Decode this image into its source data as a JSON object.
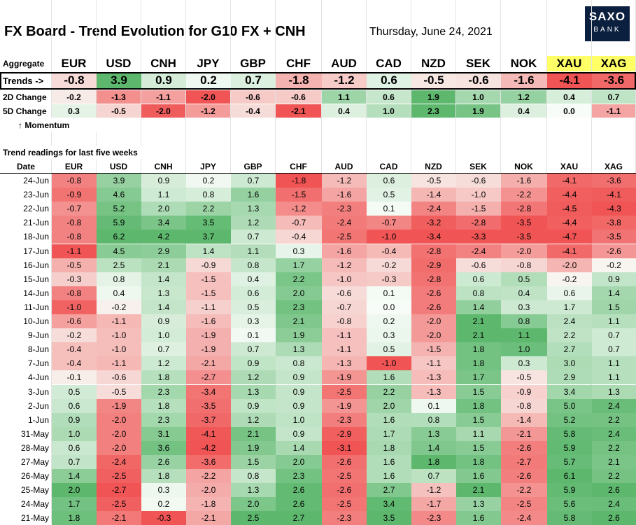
{
  "header": {
    "title": "FX Board - Trend Evolution for G10 FX + CNH",
    "date": "Thursday, June 24, 2021",
    "logo_line1": "SAXO",
    "logo_line2": "BANK"
  },
  "labels": {
    "aggregate": "Aggregate",
    "trends": "Trends ->",
    "change_2d": "2D Change",
    "change_5d": "5D Change",
    "momentum": "↑ Momentum",
    "section": "Trend readings for last five weeks",
    "date_col": "Date"
  },
  "colors": {
    "positive": "#5db86e",
    "negative": "#f05454",
    "neutral": "#f8fcf8",
    "metals_header": "#ffff66",
    "logo_bg": "#0b1f3f"
  },
  "chart_data": {
    "type": "heatmap",
    "currencies": [
      "EUR",
      "USD",
      "CNH",
      "JPY",
      "GBP",
      "CHF",
      "AUD",
      "CAD",
      "NZD",
      "SEK",
      "NOK",
      "XAU",
      "XAG"
    ],
    "aggregate": {
      "trends": [
        "-0.8",
        "3.9",
        "0.9",
        "0.2",
        "0.7",
        "-1.8",
        "-1.2",
        "0.6",
        "-0.5",
        "-0.6",
        "-1.6",
        "-4.1",
        "-3.6"
      ],
      "change_2d": [
        "-0.2",
        "-1.3",
        "-1.1",
        "-2.0",
        "-0.6",
        "-0.6",
        "1.1",
        "0.6",
        "1.9",
        "1.0",
        "1.2",
        "0.4",
        "0.7"
      ],
      "change_5d": [
        "0.3",
        "-0.5",
        "-2.0",
        "-1.2",
        "-0.4",
        "-2.1",
        "0.4",
        "1.0",
        "2.3",
        "1.9",
        "0.4",
        "0.0",
        "-1.1"
      ]
    },
    "history": [
      {
        "date": "24-Jun",
        "values": [
          "-0.8",
          "3.9",
          "0.9",
          "0.2",
          "0.7",
          "-1.8",
          "-1.2",
          "0.6",
          "-0.5",
          "-0.6",
          "-1.6",
          "-4.1",
          "-3.6"
        ]
      },
      {
        "date": "23-Jun",
        "values": [
          "-0.9",
          "4.6",
          "1.1",
          "0.8",
          "1.6",
          "-1.5",
          "-1.6",
          "0.5",
          "-1.4",
          "-1.0",
          "-2.2",
          "-4.4",
          "-4.1"
        ]
      },
      {
        "date": "22-Jun",
        "values": [
          "-0.7",
          "5.2",
          "2.0",
          "2.2",
          "1.3",
          "-1.2",
          "-2.3",
          "0.1",
          "-2.4",
          "-1.5",
          "-2.8",
          "-4.5",
          "-4.3"
        ]
      },
      {
        "date": "21-Jun",
        "values": [
          "-0.8",
          "5.9",
          "3.4",
          "3.5",
          "1.2",
          "-0.7",
          "-2.4",
          "-0.7",
          "-3.2",
          "-2.8",
          "-3.5",
          "-4.4",
          "-3.8"
        ]
      },
      {
        "date": "18-Jun",
        "values": [
          "-0.8",
          "6.2",
          "4.2",
          "3.7",
          "0.7",
          "-0.4",
          "-2.5",
          "-1.0",
          "-3.4",
          "-3.3",
          "-3.5",
          "-4.7",
          "-3.5"
        ]
      },
      {
        "date": "17-Jun",
        "values": [
          "-1.1",
          "4.5",
          "2.9",
          "1.4",
          "1.1",
          "0.3",
          "-1.6",
          "-0.4",
          "-2.8",
          "-2.4",
          "-2.0",
          "-4.1",
          "-2.6"
        ]
      },
      {
        "date": "16-Jun",
        "values": [
          "-0.5",
          "2.5",
          "2.1",
          "-0.9",
          "0.8",
          "1.7",
          "-1.2",
          "-0.2",
          "-2.9",
          "-0.6",
          "-0.8",
          "-2.0",
          "-0.2"
        ]
      },
      {
        "date": "15-Jun",
        "values": [
          "-0.3",
          "0.8",
          "1.4",
          "-1.5",
          "0.4",
          "2.2",
          "-1.0",
          "-0.3",
          "-2.8",
          "0.6",
          "0.5",
          "-0.2",
          "0.9"
        ]
      },
      {
        "date": "14-Jun",
        "values": [
          "-0.8",
          "0.4",
          "1.3",
          "-1.5",
          "0.6",
          "2.0",
          "-0.6",
          "0.1",
          "-2.6",
          "0.8",
          "0.4",
          "0.6",
          "1.4"
        ]
      },
      {
        "date": "11-Jun",
        "values": [
          "-1.0",
          "-0.2",
          "1.4",
          "-1.1",
          "0.5",
          "2.3",
          "-0.7",
          "0.0",
          "-2.6",
          "1.4",
          "0.3",
          "1.7",
          "1.5"
        ]
      },
      {
        "date": "10-Jun",
        "values": [
          "-0.6",
          "-1.1",
          "0.9",
          "-1.6",
          "0.3",
          "2.1",
          "-0.8",
          "0.2",
          "-2.0",
          "2.1",
          "0.8",
          "2.4",
          "1.1"
        ]
      },
      {
        "date": "9-Jun",
        "values": [
          "-0.2",
          "-1.0",
          "1.0",
          "-1.9",
          "0.1",
          "1.9",
          "-1.1",
          "0.3",
          "-2.0",
          "2.1",
          "1.1",
          "2.2",
          "0.7"
        ]
      },
      {
        "date": "8-Jun",
        "values": [
          "-0.4",
          "-1.0",
          "0.7",
          "-1.9",
          "0.7",
          "1.3",
          "-1.1",
          "0.5",
          "-1.5",
          "1.8",
          "1.0",
          "2.7",
          "0.7"
        ]
      },
      {
        "date": "7-Jun",
        "values": [
          "-0.4",
          "-1.1",
          "1.2",
          "-2.1",
          "0.9",
          "0.8",
          "-1.3",
          "-1.0",
          "-1.1",
          "1.8",
          "0.3",
          "3.0",
          "1.1"
        ]
      },
      {
        "date": "4-Jun",
        "values": [
          "-0.1",
          "-0.6",
          "1.8",
          "-2.7",
          "1.2",
          "0.9",
          "-1.9",
          "1.6",
          "-1.3",
          "1.7",
          "-0.5",
          "2.9",
          "1.1"
        ]
      },
      {
        "date": "3-Jun",
        "values": [
          "0.5",
          "-0.5",
          "2.3",
          "-3.4",
          "1.3",
          "0.9",
          "-2.5",
          "2.2",
          "-1.3",
          "1.5",
          "-0.9",
          "3.4",
          "1.3"
        ]
      },
      {
        "date": "2-Jun",
        "values": [
          "0.6",
          "-1.9",
          "1.8",
          "-3.5",
          "0.9",
          "0.9",
          "-1.9",
          "2.0",
          "0.1",
          "1.8",
          "-0.8",
          "5.0",
          "2.4"
        ]
      },
      {
        "date": "1-Jun",
        "values": [
          "0.9",
          "-2.0",
          "2.3",
          "-3.7",
          "1.2",
          "1.0",
          "-2.3",
          "1.6",
          "0.8",
          "1.5",
          "-1.4",
          "5.2",
          "2.2"
        ]
      },
      {
        "date": "31-May",
        "values": [
          "1.0",
          "-2.0",
          "3.1",
          "-4.1",
          "2.1",
          "0.9",
          "-2.9",
          "1.7",
          "1.3",
          "1.1",
          "-2.1",
          "5.8",
          "2.4"
        ]
      },
      {
        "date": "28-May",
        "values": [
          "0.6",
          "-2.0",
          "3.6",
          "-4.2",
          "1.9",
          "1.4",
          "-3.1",
          "1.8",
          "1.4",
          "1.5",
          "-2.6",
          "5.9",
          "2.2"
        ]
      },
      {
        "date": "27-May",
        "values": [
          "0.7",
          "-2.4",
          "2.6",
          "-3.6",
          "1.5",
          "2.0",
          "-2.6",
          "1.6",
          "1.8",
          "1.8",
          "-2.7",
          "5.7",
          "2.1"
        ]
      },
      {
        "date": "26-May",
        "values": [
          "1.4",
          "-2.5",
          "1.8",
          "-2.2",
          "0.8",
          "2.3",
          "-2.5",
          "1.6",
          "0.7",
          "1.6",
          "-2.6",
          "6.1",
          "2.2"
        ]
      },
      {
        "date": "25-May",
        "values": [
          "2.0",
          "-2.7",
          "0.3",
          "-2.0",
          "1.3",
          "2.6",
          "-2.6",
          "2.7",
          "-1.2",
          "2.1",
          "-2.2",
          "5.9",
          "2.6"
        ]
      },
      {
        "date": "24-May",
        "values": [
          "1.7",
          "-2.5",
          "0.2",
          "-1.8",
          "2.0",
          "2.6",
          "-2.5",
          "3.4",
          "-1.7",
          "1.3",
          "-2.5",
          "5.6",
          "2.4"
        ]
      },
      {
        "date": "21-May",
        "values": [
          "1.8",
          "-2.1",
          "-0.3",
          "-2.1",
          "2.5",
          "2.7",
          "-2.3",
          "3.5",
          "-2.3",
          "1.6",
          "-2.4",
          "5.8",
          "2.6"
        ]
      }
    ]
  }
}
